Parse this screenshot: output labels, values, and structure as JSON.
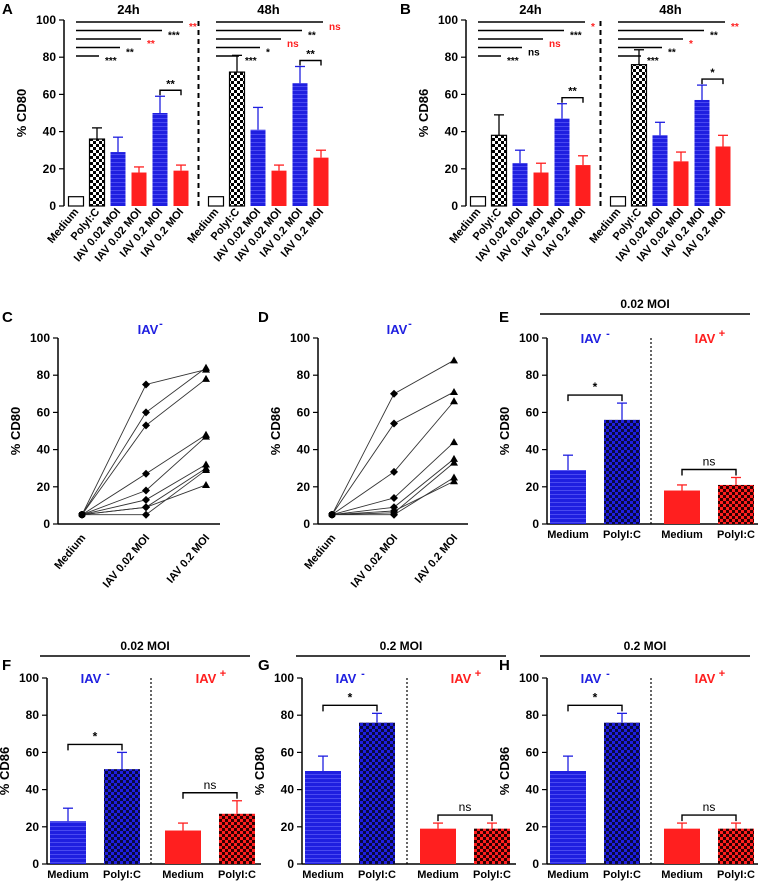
{
  "figure": {
    "colors": {
      "blue": "#1f1fe0",
      "red": "#ff1f1f",
      "black": "#000000",
      "white": "#ffffff"
    },
    "sig": {
      "one": "*",
      "two": "**",
      "three": "***",
      "ns": "ns"
    }
  },
  "chart_data": [
    {
      "panel": "A",
      "type": "bar",
      "ylabel": "% CD80",
      "ylim": [
        0,
        100
      ],
      "yticks": [
        0,
        20,
        40,
        60,
        80,
        100
      ],
      "groups": [
        "24h",
        "48h"
      ],
      "categories": [
        "Medium",
        "PolyI:C",
        "IAV 0.02 MOI",
        "IAV 0.02 MOI",
        "IAV 0.2 MOI",
        "IAV 0.2 MOI",
        "Medium",
        "PolyI:C",
        "IAV 0.02 MOI",
        "IAV 0.02 MOI",
        "IAV 0.2 MOI",
        "IAV 0.2 MOI"
      ],
      "values": [
        5,
        36,
        29,
        18,
        50,
        19,
        5,
        72,
        41,
        19,
        66,
        26
      ],
      "errors": [
        0,
        6,
        8,
        3,
        9,
        3,
        0,
        9,
        12,
        3,
        9,
        4
      ],
      "styles": [
        "white",
        "check",
        "blue",
        "red",
        "blue",
        "red",
        "white",
        "check",
        "blue",
        "red",
        "blue",
        "red"
      ],
      "sig_brackets_24h": [
        {
          "text": "***",
          "color": "black"
        },
        {
          "text": "**",
          "color": "black"
        },
        {
          "text": "**",
          "color": "red"
        },
        {
          "text": "***",
          "color": "black"
        },
        {
          "text": "**",
          "color": "red"
        }
      ],
      "sig_brackets_48h": [
        {
          "text": "***",
          "color": "black"
        },
        {
          "text": "*",
          "color": "black"
        },
        {
          "text": "ns",
          "color": "red"
        },
        {
          "text": "**",
          "color": "black"
        },
        {
          "text": "ns",
          "color": "red"
        }
      ],
      "pair_24h": "**",
      "pair_48h": "**"
    },
    {
      "panel": "B",
      "type": "bar",
      "ylabel": "% CD86",
      "ylim": [
        0,
        100
      ],
      "yticks": [
        0,
        20,
        40,
        60,
        80,
        100
      ],
      "groups": [
        "24h",
        "48h"
      ],
      "categories": [
        "Medium",
        "PolyI:C",
        "IAV 0.02 MOI",
        "IAV 0.02 MOI",
        "IAV 0.2 MOI",
        "IAV 0.2 MOI",
        "Medium",
        "PolyI:C",
        "IAV 0.02 MOI",
        "IAV 0.02 MOI",
        "IAV 0.2 MOI",
        "IAV 0.2 MOI"
      ],
      "values": [
        5,
        38,
        23,
        18,
        47,
        22,
        5,
        76,
        38,
        24,
        57,
        32
      ],
      "errors": [
        0,
        11,
        7,
        5,
        8,
        5,
        0,
        8,
        7,
        5,
        8,
        6
      ],
      "styles": [
        "white",
        "check",
        "blue",
        "red",
        "blue",
        "red",
        "white",
        "check",
        "blue",
        "red",
        "blue",
        "red"
      ],
      "sig_brackets_24h": [
        {
          "text": "***",
          "color": "black"
        },
        {
          "text": "ns",
          "color": "black"
        },
        {
          "text": "ns",
          "color": "red"
        },
        {
          "text": "***",
          "color": "black"
        },
        {
          "text": "*",
          "color": "red"
        }
      ],
      "sig_brackets_48h": [
        {
          "text": "***",
          "color": "black"
        },
        {
          "text": "**",
          "color": "black"
        },
        {
          "text": "*",
          "color": "red"
        },
        {
          "text": "**",
          "color": "black"
        },
        {
          "text": "**",
          "color": "red"
        }
      ],
      "pair_24h": "**",
      "pair_48h": "*"
    },
    {
      "panel": "C",
      "type": "line",
      "title": "IAV",
      "title_sup": "-",
      "ylabel": "% CD80",
      "ylim": [
        0,
        100
      ],
      "yticks": [
        0,
        20,
        40,
        60,
        80,
        100
      ],
      "categories": [
        "Medium",
        "IAV 0.02 MOI",
        "IAV 0.2 MOI"
      ],
      "series": [
        {
          "values": [
            5,
            75,
            83
          ]
        },
        {
          "values": [
            5,
            60,
            84
          ]
        },
        {
          "values": [
            5,
            53,
            78
          ]
        },
        {
          "values": [
            5,
            27,
            48
          ]
        },
        {
          "values": [
            5,
            18,
            47
          ]
        },
        {
          "values": [
            5,
            13,
            32
          ]
        },
        {
          "values": [
            5,
            9,
            30
          ]
        },
        {
          "values": [
            5,
            5,
            29
          ]
        },
        {
          "values": [
            5,
            9,
            21
          ]
        }
      ]
    },
    {
      "panel": "D",
      "type": "line",
      "title": "IAV",
      "title_sup": "-",
      "ylabel": "% CD86",
      "ylim": [
        0,
        100
      ],
      "yticks": [
        0,
        20,
        40,
        60,
        80,
        100
      ],
      "categories": [
        "Medium",
        "IAV 0.02 MOI",
        "IAV 0.2 MOI"
      ],
      "series": [
        {
          "values": [
            5,
            70,
            88
          ]
        },
        {
          "values": [
            5,
            54,
            71
          ]
        },
        {
          "values": [
            5,
            28,
            66
          ]
        },
        {
          "values": [
            5,
            14,
            44
          ]
        },
        {
          "values": [
            5,
            9,
            35
          ]
        },
        {
          "values": [
            5,
            6,
            33
          ]
        },
        {
          "values": [
            5,
            5,
            25
          ]
        },
        {
          "values": [
            5,
            7,
            23
          ]
        }
      ]
    },
    {
      "panel": "E",
      "type": "bar",
      "header": "0.02 MOI",
      "ylabel": "% CD80",
      "ylim": [
        0,
        100
      ],
      "yticks": [
        0,
        20,
        40,
        60,
        80,
        100
      ],
      "left_label": "IAV",
      "left_sup": "-",
      "right_label": "IAV",
      "right_sup": "+",
      "categories": [
        "Medium",
        "PolyI:C",
        "Medium",
        "PolyI:C"
      ],
      "values": [
        29,
        56,
        18,
        21
      ],
      "errors": [
        8,
        9,
        3,
        4
      ],
      "styles": [
        "blue",
        "bluecheck",
        "red",
        "redcheck"
      ],
      "sig_left": "*",
      "sig_right": "ns"
    },
    {
      "panel": "F",
      "type": "bar",
      "header": "0.02 MOI",
      "ylabel": "% CD86",
      "ylim": [
        0,
        100
      ],
      "yticks": [
        0,
        20,
        40,
        60,
        80,
        100
      ],
      "left_label": "IAV",
      "left_sup": "-",
      "right_label": "IAV",
      "right_sup": "+",
      "categories": [
        "Medium",
        "PolyI:C",
        "Medium",
        "PolyI:C"
      ],
      "values": [
        23,
        51,
        18,
        27
      ],
      "errors": [
        7,
        9,
        4,
        7
      ],
      "styles": [
        "blue",
        "bluecheck",
        "red",
        "redcheck"
      ],
      "sig_left": "*",
      "sig_right": "ns"
    },
    {
      "panel": "G",
      "type": "bar",
      "header": "0.2 MOI",
      "ylabel": "% CD80",
      "ylim": [
        0,
        100
      ],
      "yticks": [
        0,
        20,
        40,
        60,
        80,
        100
      ],
      "left_label": "IAV",
      "left_sup": "-",
      "right_label": "IAV",
      "right_sup": "+",
      "categories": [
        "Medium",
        "PolyI:C",
        "Medium",
        "PolyI:C"
      ],
      "values": [
        50,
        76,
        19,
        19
      ],
      "errors": [
        8,
        5,
        3,
        3
      ],
      "styles": [
        "blue",
        "bluecheck",
        "red",
        "redcheck"
      ],
      "sig_left": "*",
      "sig_right": "ns"
    },
    {
      "panel": "H",
      "type": "bar",
      "header": "0.2 MOI",
      "ylabel": "% CD86",
      "ylim": [
        0,
        100
      ],
      "yticks": [
        0,
        20,
        40,
        60,
        80,
        100
      ],
      "left_label": "IAV",
      "left_sup": "-",
      "right_label": "IAV",
      "right_sup": "+",
      "categories": [
        "Medium",
        "PolyI:C",
        "Medium",
        "PolyI:C"
      ],
      "values": [
        50,
        76,
        19,
        19
      ],
      "errors": [
        8,
        5,
        3,
        3
      ],
      "styles": [
        "blue",
        "bluecheck",
        "red",
        "redcheck"
      ],
      "sig_left": "*",
      "sig_right": "ns"
    }
  ]
}
